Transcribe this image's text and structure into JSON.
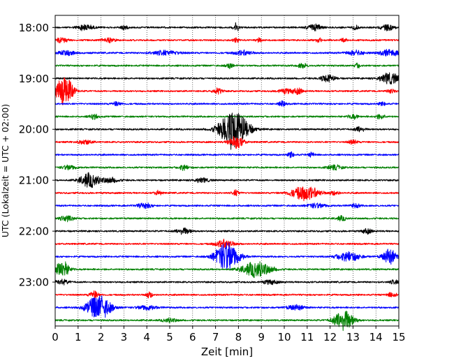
{
  "chart_data": {
    "type": "line",
    "title": "",
    "xlabel": "Zeit  [min]",
    "ylabel": "UTC (Lokalzeit = UTC + 02:00)",
    "xlim": [
      0,
      15
    ],
    "x_ticks": [
      "0",
      "1",
      "2",
      "3",
      "4",
      "5",
      "6",
      "7",
      "8",
      "9",
      "10",
      "11",
      "12",
      "13",
      "14",
      "15"
    ],
    "y_tick_labels": [
      "18:00",
      "19:00",
      "20:00",
      "21:00",
      "22:00",
      "23:00"
    ],
    "traces_per_hour": 4,
    "trace_minutes": 15,
    "start_time": "18:00",
    "trace_count": 24,
    "color_cycle": [
      "#000000",
      "#ff0000",
      "#0000ff",
      "#008000"
    ],
    "grid": {
      "vertical_dotted": true,
      "horizontal": false
    },
    "series": [
      {
        "events": [
          [
            1.3,
            0.35,
            0.45
          ],
          [
            3.0,
            0.15,
            0.35
          ],
          [
            7.9,
            0.12,
            0.6
          ],
          [
            11.3,
            0.3,
            0.5
          ],
          [
            13.1,
            0.15,
            0.3
          ],
          [
            14.5,
            0.3,
            0.4
          ]
        ]
      },
      {
        "events": [
          [
            0.3,
            0.3,
            0.35
          ],
          [
            2.3,
            0.3,
            0.35
          ],
          [
            7.9,
            0.12,
            0.4
          ],
          [
            8.9,
            0.12,
            0.35
          ],
          [
            11.5,
            0.12,
            0.4
          ],
          [
            12.6,
            0.12,
            0.3
          ]
        ]
      },
      {
        "events": [
          [
            0.5,
            0.35,
            0.4
          ],
          [
            4.8,
            0.6,
            0.35
          ],
          [
            8.2,
            0.4,
            0.35
          ],
          [
            13.1,
            0.4,
            0.35
          ],
          [
            14.6,
            0.4,
            0.5
          ]
        ]
      },
      {
        "events": [
          [
            7.6,
            0.15,
            0.45
          ],
          [
            10.8,
            0.2,
            0.4
          ],
          [
            13.2,
            0.12,
            0.35
          ]
        ]
      },
      {
        "events": [
          [
            11.9,
            0.3,
            0.55
          ],
          [
            14.6,
            0.4,
            0.9
          ]
        ]
      },
      {
        "events": [
          [
            0.4,
            0.35,
            2.5
          ],
          [
            7.1,
            0.2,
            0.45
          ],
          [
            10.1,
            0.35,
            0.35
          ],
          [
            10.6,
            0.2,
            0.4
          ],
          [
            14.7,
            0.2,
            0.3
          ]
        ]
      },
      {
        "events": [
          [
            2.7,
            0.2,
            0.3
          ],
          [
            9.9,
            0.15,
            0.4
          ],
          [
            14.3,
            0.15,
            0.3
          ]
        ]
      },
      {
        "events": [
          [
            1.7,
            0.2,
            0.35
          ],
          [
            13.0,
            0.2,
            0.35
          ],
          [
            14.2,
            0.2,
            0.35
          ]
        ]
      },
      {
        "events": [
          [
            7.8,
            0.6,
            3.0
          ],
          [
            13.3,
            0.2,
            0.45
          ]
        ]
      },
      {
        "events": [
          [
            1.3,
            0.3,
            0.35
          ],
          [
            7.9,
            0.3,
            1.0
          ],
          [
            13.0,
            0.2,
            0.3
          ]
        ]
      },
      {
        "events": [
          [
            10.3,
            0.12,
            0.5
          ],
          [
            11.2,
            0.12,
            0.35
          ]
        ]
      },
      {
        "events": [
          [
            0.6,
            0.3,
            0.35
          ],
          [
            5.6,
            0.2,
            0.4
          ],
          [
            12.2,
            0.3,
            0.35
          ]
        ]
      },
      {
        "events": [
          [
            1.5,
            0.4,
            1.1
          ],
          [
            2.4,
            0.4,
            0.35
          ],
          [
            6.4,
            0.3,
            0.35
          ]
        ]
      },
      {
        "events": [
          [
            4.5,
            0.15,
            0.35
          ],
          [
            7.9,
            0.15,
            0.45
          ],
          [
            10.9,
            0.6,
            1.1
          ],
          [
            12.2,
            0.2,
            0.3
          ]
        ]
      },
      {
        "events": [
          [
            3.9,
            0.3,
            0.4
          ],
          [
            11.4,
            0.4,
            0.35
          ],
          [
            13.1,
            0.2,
            0.3
          ]
        ]
      },
      {
        "events": [
          [
            0.5,
            0.3,
            0.4
          ],
          [
            12.5,
            0.2,
            0.35
          ]
        ]
      },
      {
        "events": [
          [
            5.6,
            0.3,
            0.5
          ],
          [
            13.6,
            0.2,
            0.4
          ]
        ]
      },
      {
        "events": [
          [
            7.4,
            0.4,
            0.6
          ]
        ]
      },
      {
        "events": [
          [
            7.5,
            0.5,
            2.3
          ],
          [
            12.8,
            0.5,
            0.7
          ],
          [
            14.6,
            0.3,
            1.1
          ]
        ]
      },
      {
        "events": [
          [
            0.3,
            0.3,
            1.3
          ],
          [
            8.8,
            0.6,
            1.2
          ]
        ]
      },
      {
        "events": [
          [
            0.3,
            0.3,
            0.35
          ],
          [
            9.4,
            0.3,
            0.35
          ],
          [
            14.8,
            0.2,
            0.3
          ]
        ]
      },
      {
        "events": [
          [
            1.7,
            0.2,
            0.55
          ],
          [
            4.1,
            0.15,
            0.45
          ],
          [
            14.7,
            0.2,
            0.35
          ]
        ]
      },
      {
        "events": [
          [
            1.9,
            0.5,
            2.0
          ],
          [
            4.0,
            0.4,
            0.35
          ],
          [
            10.5,
            0.4,
            0.35
          ]
        ]
      },
      {
        "events": [
          [
            12.6,
            0.4,
            1.7
          ],
          [
            5.0,
            0.3,
            0.3
          ]
        ]
      }
    ]
  }
}
